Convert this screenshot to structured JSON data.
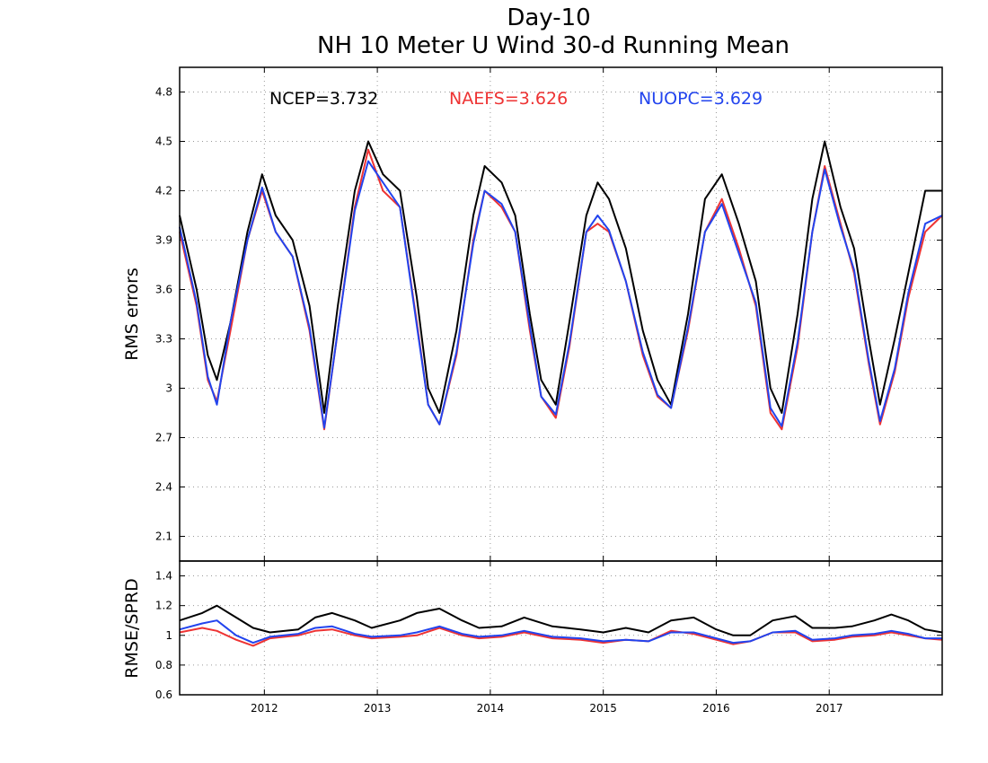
{
  "chart_data": [
    {
      "type": "line",
      "title": "Day-10",
      "subtitle": "NH 10 Meter U Wind 30-d Running Mean",
      "xlabel": "",
      "ylabel": "RMS errors",
      "x_ticks": [
        "2012",
        "2013",
        "2014",
        "2015",
        "2016",
        "2017"
      ],
      "y_ticks": [
        "2.1",
        "2.4",
        "2.7",
        "3",
        "3.3",
        "3.6",
        "3.9",
        "4.2",
        "4.5",
        "4.8"
      ],
      "xlim": [
        2011.25,
        2018.0
      ],
      "ylim": [
        1.95,
        4.95
      ],
      "grid": true,
      "annotations": [
        {
          "name": "NCEP",
          "text": "NCEP=3.732",
          "color": "#000000"
        },
        {
          "name": "NAEFS",
          "text": "NAEFS=3.626",
          "color": "#ee3333"
        },
        {
          "name": "NUOPC",
          "text": "NUOPC=3.629",
          "color": "#2244ee"
        }
      ],
      "series": [
        {
          "name": "NCEP",
          "color": "#000000",
          "x": [
            2011.25,
            2011.4,
            2011.5,
            2011.58,
            2011.7,
            2011.85,
            2011.98,
            2012.1,
            2012.25,
            2012.4,
            2012.53,
            2012.65,
            2012.8,
            2012.92,
            2013.05,
            2013.2,
            2013.35,
            2013.45,
            2013.55,
            2013.7,
            2013.85,
            2013.95,
            2014.1,
            2014.22,
            2014.35,
            2014.45,
            2014.58,
            2014.7,
            2014.85,
            2014.95,
            2015.05,
            2015.2,
            2015.35,
            2015.48,
            2015.6,
            2015.75,
            2015.9,
            2016.05,
            2016.2,
            2016.35,
            2016.48,
            2016.58,
            2016.72,
            2016.85,
            2016.96,
            2017.1,
            2017.22,
            2017.35,
            2017.45,
            2017.58,
            2017.7,
            2017.85,
            2018.0
          ],
          "y": [
            4.05,
            3.6,
            3.2,
            3.05,
            3.4,
            3.95,
            4.3,
            4.05,
            3.9,
            3.5,
            2.85,
            3.5,
            4.2,
            4.5,
            4.3,
            4.2,
            3.55,
            3.0,
            2.85,
            3.35,
            4.05,
            4.35,
            4.25,
            4.05,
            3.45,
            3.05,
            2.9,
            3.4,
            4.05,
            4.25,
            4.15,
            3.85,
            3.35,
            3.05,
            2.9,
            3.45,
            4.15,
            4.3,
            4.0,
            3.65,
            3.0,
            2.85,
            3.45,
            4.15,
            4.5,
            4.1,
            3.85,
            3.3,
            2.9,
            3.3,
            3.7,
            4.2,
            4.2
          ]
        },
        {
          "name": "NAEFS",
          "color": "#ee3333",
          "x": [
            2011.25,
            2011.4,
            2011.5,
            2011.58,
            2011.7,
            2011.85,
            2011.98,
            2012.1,
            2012.25,
            2012.4,
            2012.53,
            2012.65,
            2012.8,
            2012.92,
            2013.05,
            2013.2,
            2013.35,
            2013.45,
            2013.55,
            2013.7,
            2013.85,
            2013.95,
            2014.1,
            2014.22,
            2014.35,
            2014.45,
            2014.58,
            2014.7,
            2014.85,
            2014.95,
            2015.05,
            2015.2,
            2015.35,
            2015.48,
            2015.6,
            2015.75,
            2015.9,
            2016.05,
            2016.2,
            2016.35,
            2016.48,
            2016.58,
            2016.72,
            2016.85,
            2016.96,
            2017.1,
            2017.22,
            2017.35,
            2017.45,
            2017.58,
            2017.7,
            2017.85,
            2018.0
          ],
          "y": [
            3.95,
            3.5,
            3.05,
            2.92,
            3.35,
            3.9,
            4.2,
            3.95,
            3.8,
            3.35,
            2.75,
            3.35,
            4.1,
            4.45,
            4.2,
            4.1,
            3.4,
            2.9,
            2.78,
            3.2,
            3.9,
            4.2,
            4.1,
            3.95,
            3.35,
            2.95,
            2.82,
            3.25,
            3.95,
            4.0,
            3.95,
            3.65,
            3.2,
            2.95,
            2.88,
            3.35,
            3.95,
            4.15,
            3.85,
            3.5,
            2.85,
            2.75,
            3.25,
            3.95,
            4.35,
            4.0,
            3.7,
            3.15,
            2.78,
            3.1,
            3.55,
            3.95,
            4.05
          ]
        },
        {
          "name": "NUOPC",
          "color": "#2244ee",
          "x": [
            2011.25,
            2011.4,
            2011.5,
            2011.58,
            2011.7,
            2011.85,
            2011.98,
            2012.1,
            2012.25,
            2012.4,
            2012.53,
            2012.65,
            2012.8,
            2012.92,
            2013.05,
            2013.2,
            2013.35,
            2013.45,
            2013.55,
            2013.7,
            2013.85,
            2013.95,
            2014.1,
            2014.22,
            2014.35,
            2014.45,
            2014.58,
            2014.7,
            2014.85,
            2014.95,
            2015.05,
            2015.2,
            2015.35,
            2015.48,
            2015.6,
            2015.75,
            2015.9,
            2016.05,
            2016.2,
            2016.35,
            2016.48,
            2016.58,
            2016.72,
            2016.85,
            2016.96,
            2017.1,
            2017.22,
            2017.35,
            2017.45,
            2017.58,
            2017.7,
            2017.85,
            2018.0
          ],
          "y": [
            3.98,
            3.52,
            3.07,
            2.9,
            3.4,
            3.9,
            4.22,
            3.95,
            3.8,
            3.37,
            2.76,
            3.35,
            4.08,
            4.38,
            4.25,
            4.1,
            3.38,
            2.9,
            2.78,
            3.22,
            3.88,
            4.2,
            4.12,
            3.95,
            3.38,
            2.95,
            2.84,
            3.27,
            3.95,
            4.05,
            3.96,
            3.65,
            3.22,
            2.96,
            2.88,
            3.37,
            3.95,
            4.12,
            3.82,
            3.52,
            2.88,
            2.77,
            3.28,
            3.95,
            4.33,
            3.98,
            3.72,
            3.17,
            2.8,
            3.12,
            3.58,
            4.0,
            4.05
          ]
        }
      ]
    },
    {
      "type": "line",
      "title": "",
      "xlabel": "",
      "ylabel": "RMSE/SPRD",
      "x_ticks": [
        "2012",
        "2013",
        "2014",
        "2015",
        "2016",
        "2017"
      ],
      "y_ticks": [
        "0.6",
        "0.8",
        "1",
        "1.2",
        "1.4"
      ],
      "xlim": [
        2011.25,
        2018.0
      ],
      "ylim": [
        0.6,
        1.5
      ],
      "grid": true,
      "series": [
        {
          "name": "NCEP",
          "color": "#000000",
          "x": [
            2011.25,
            2011.45,
            2011.58,
            2011.75,
            2011.9,
            2012.05,
            2012.3,
            2012.45,
            2012.6,
            2012.8,
            2012.95,
            2013.2,
            2013.35,
            2013.55,
            2013.75,
            2013.9,
            2014.1,
            2014.3,
            2014.55,
            2014.8,
            2015.0,
            2015.2,
            2015.4,
            2015.6,
            2015.8,
            2016.0,
            2016.15,
            2016.3,
            2016.5,
            2016.7,
            2016.85,
            2017.05,
            2017.2,
            2017.4,
            2017.55,
            2017.7,
            2017.85,
            2018.0
          ],
          "y": [
            1.1,
            1.15,
            1.2,
            1.12,
            1.05,
            1.02,
            1.04,
            1.12,
            1.15,
            1.1,
            1.05,
            1.1,
            1.15,
            1.18,
            1.1,
            1.05,
            1.06,
            1.12,
            1.06,
            1.04,
            1.02,
            1.05,
            1.02,
            1.1,
            1.12,
            1.04,
            1.0,
            1.0,
            1.1,
            1.13,
            1.05,
            1.05,
            1.06,
            1.1,
            1.14,
            1.1,
            1.04,
            1.02
          ]
        },
        {
          "name": "NAEFS",
          "color": "#ee3333",
          "x": [
            2011.25,
            2011.45,
            2011.58,
            2011.75,
            2011.9,
            2012.05,
            2012.3,
            2012.45,
            2012.6,
            2012.8,
            2012.95,
            2013.2,
            2013.35,
            2013.55,
            2013.75,
            2013.9,
            2014.1,
            2014.3,
            2014.55,
            2014.8,
            2015.0,
            2015.2,
            2015.4,
            2015.6,
            2015.8,
            2016.0,
            2016.15,
            2016.3,
            2016.5,
            2016.7,
            2016.85,
            2017.05,
            2017.2,
            2017.4,
            2017.55,
            2017.7,
            2017.85,
            2018.0
          ],
          "y": [
            1.02,
            1.05,
            1.03,
            0.97,
            0.93,
            0.98,
            1.0,
            1.03,
            1.04,
            1.0,
            0.98,
            0.99,
            1.0,
            1.05,
            1.0,
            0.98,
            0.99,
            1.02,
            0.98,
            0.97,
            0.95,
            0.97,
            0.96,
            1.03,
            1.01,
            0.97,
            0.94,
            0.96,
            1.02,
            1.02,
            0.96,
            0.97,
            0.99,
            1.0,
            1.02,
            1.0,
            0.98,
            0.97
          ]
        },
        {
          "name": "NUOPC",
          "color": "#2244ee",
          "x": [
            2011.25,
            2011.45,
            2011.58,
            2011.75,
            2011.9,
            2012.05,
            2012.3,
            2012.45,
            2012.6,
            2012.8,
            2012.95,
            2013.2,
            2013.35,
            2013.55,
            2013.75,
            2013.9,
            2014.1,
            2014.3,
            2014.55,
            2014.8,
            2015.0,
            2015.2,
            2015.4,
            2015.6,
            2015.8,
            2016.0,
            2016.15,
            2016.3,
            2016.5,
            2016.7,
            2016.85,
            2017.05,
            2017.2,
            2017.4,
            2017.55,
            2017.7,
            2017.85,
            2018.0
          ],
          "y": [
            1.04,
            1.08,
            1.1,
            1.0,
            0.95,
            0.99,
            1.01,
            1.05,
            1.06,
            1.01,
            0.99,
            1.0,
            1.02,
            1.06,
            1.01,
            0.99,
            1.0,
            1.03,
            0.99,
            0.98,
            0.96,
            0.97,
            0.96,
            1.02,
            1.02,
            0.98,
            0.95,
            0.96,
            1.02,
            1.03,
            0.97,
            0.98,
            1.0,
            1.01,
            1.03,
            1.01,
            0.98,
            0.98
          ]
        }
      ]
    }
  ]
}
